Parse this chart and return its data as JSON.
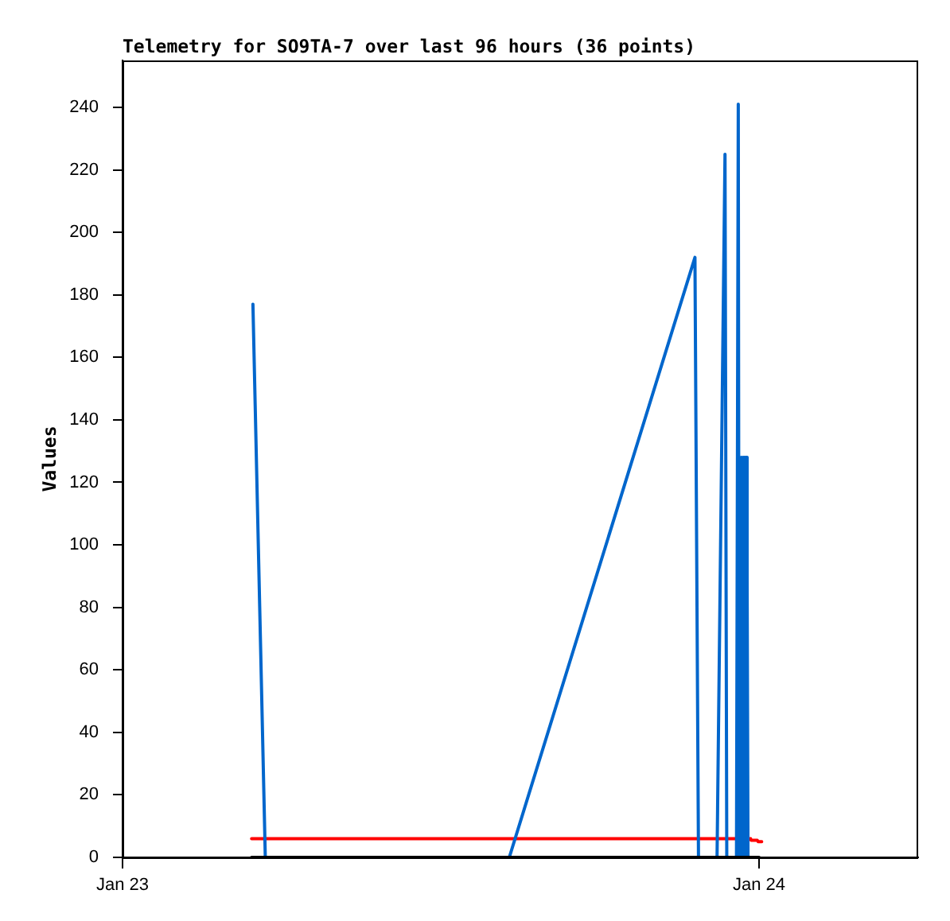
{
  "chart_data": {
    "type": "line",
    "title": "Telemetry for SO9TA-7 over last 96 hours (36 points)",
    "ylabel": "Values",
    "xlim": [
      "--01-23T00:00",
      "--01-24T06:00"
    ],
    "xticks": [
      {
        "value": "--01-23",
        "label": "Jan 23"
      },
      {
        "value": "--01-24",
        "label": "Jan 24"
      }
    ],
    "ylim": [
      0,
      255
    ],
    "yticks": [
      0,
      20,
      40,
      60,
      80,
      100,
      120,
      140,
      160,
      180,
      200,
      220,
      240
    ],
    "series": [
      {
        "color": "#000000",
        "x": [
          "--01-23T04:52",
          "--01-24T00:00"
        ],
        "values": [
          0,
          0
        ]
      },
      {
        "color": "#0066cc",
        "x": [
          "--01-23T04:55",
          "--01-23T05:23",
          "--01-23T14:35",
          "--01-23T21:35",
          "--01-23T21:43",
          "--01-23T22:25",
          "--01-23T22:43",
          "--01-23T22:47",
          "--01-23T23:09",
          "--01-23T23:13",
          "--01-23T23:15",
          "--01-23T23:16",
          "--01-23T23:18",
          "--01-23T23:20",
          "--01-23T23:22",
          "--01-23T23:24",
          "--01-23T23:26",
          "--01-23T23:28",
          "--01-23T23:30",
          "--01-23T23:32",
          "--01-23T23:33",
          "--01-23T23:35"
        ],
        "values": [
          177,
          0,
          0,
          192,
          0,
          0,
          225,
          0,
          0,
          241,
          0,
          128,
          0,
          128,
          0,
          128,
          0,
          128,
          0,
          128,
          89,
          0
        ]
      },
      {
        "color": "#ff0000",
        "x": [
          "--01-23T04:52",
          "--01-23T23:41",
          "--01-23T23:42",
          "--01-23T23:56",
          "--01-23T23:58",
          "--01-24T00:06"
        ],
        "values": [
          6,
          6,
          5.5,
          5.5,
          5,
          5
        ]
      }
    ]
  }
}
